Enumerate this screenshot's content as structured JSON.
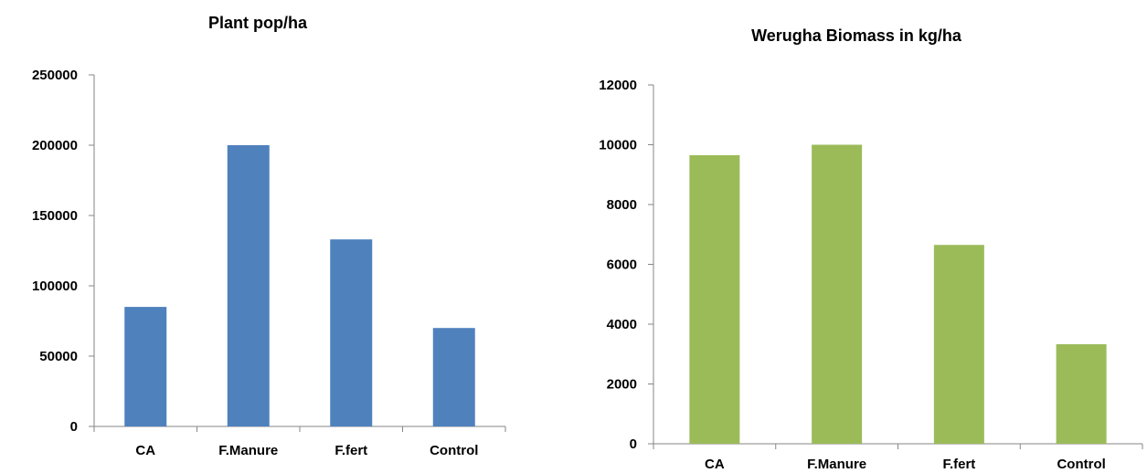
{
  "chart_data": [
    {
      "type": "bar",
      "title": "Plant pop/ha",
      "xlabel": "",
      "ylabel": "",
      "categories": [
        "CA",
        "F.Manure",
        "F.fert",
        "Control"
      ],
      "values": [
        85000,
        200000,
        133000,
        70000
      ],
      "ylim": [
        0,
        250000
      ],
      "yticks": [
        0,
        50000,
        100000,
        150000,
        200000,
        250000
      ],
      "grid": false,
      "color": "#4F81BD"
    },
    {
      "type": "bar",
      "title": "Werugha Biomass in kg/ha",
      "xlabel": "",
      "ylabel": "",
      "categories": [
        "CA",
        "F.Manure",
        "F.fert",
        "Control"
      ],
      "values": [
        9650,
        10000,
        6650,
        3330
      ],
      "ylim": [
        0,
        12000
      ],
      "yticks": [
        0,
        2000,
        4000,
        6000,
        8000,
        10000,
        12000
      ],
      "grid": false,
      "color": "#9BBB59"
    }
  ]
}
